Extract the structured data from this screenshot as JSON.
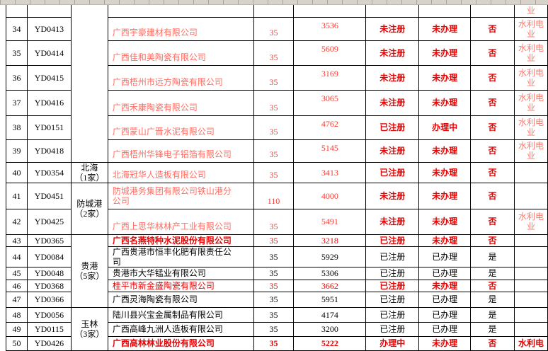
{
  "table": {
    "region_groups": [
      {
        "start": 0,
        "span": 7,
        "label": ""
      },
      {
        "start": 7,
        "span": 1,
        "label": "北海\n（1家）"
      },
      {
        "start": 8,
        "span": 2,
        "label": "防城港\n（2家）"
      },
      {
        "start": 10,
        "span": 5,
        "label": "贵港\n（5家）"
      },
      {
        "start": 15,
        "span": 3,
        "label": "玉林\n（3家）"
      }
    ],
    "rows": [
      {
        "num": "",
        "code": "",
        "company": "",
        "capacity": "",
        "value": "",
        "register": "",
        "handle": "",
        "compliant": "",
        "utility": "业",
        "tone": "red"
      },
      {
        "num": "34",
        "code": "YD0413",
        "company": "广西宇豪建材有限公司",
        "capacity": "35",
        "value": "3536",
        "register": "未注册",
        "handle": "未办理",
        "compliant": "否",
        "utility": "水利电\n业",
        "tone": "red"
      },
      {
        "num": "35",
        "code": "YD0414",
        "company": "广西佳和美陶瓷有限公司",
        "capacity": "35",
        "value": "5609",
        "register": "未注册",
        "handle": "未办理",
        "compliant": "否",
        "utility": "水利电\n业",
        "tone": "red"
      },
      {
        "num": "36",
        "code": "YD0415",
        "company": "广西梧州市远方陶瓷有限公司",
        "capacity": "35",
        "value": "3169",
        "register": "未注册",
        "handle": "未办理",
        "compliant": "否",
        "utility": "水利电\n业",
        "tone": "red"
      },
      {
        "num": "37",
        "code": "YD0416",
        "company": "广西禾康陶瓷有限公司",
        "capacity": "35",
        "value": "3065",
        "register": "未注册",
        "handle": "未办理",
        "compliant": "否",
        "utility": "水利电\n业",
        "tone": "red"
      },
      {
        "num": "38",
        "code": "YD0151",
        "company": "广西蒙山广晋水泥有限公司",
        "capacity": "35",
        "value": "4762",
        "register": "已注册",
        "handle": "办理中",
        "compliant": "否",
        "utility": "水利电\n业",
        "tone": "red"
      },
      {
        "num": "39",
        "code": "YD0418",
        "company": "广西梧州华锋电子铝箔有限公司",
        "capacity": "35",
        "value": "5145",
        "register": "未注册",
        "handle": "未办理",
        "compliant": "否",
        "utility": "水利电\n业",
        "tone": "red"
      },
      {
        "num": "40",
        "code": "YD0354",
        "company": "北海冠华人造板有限公司",
        "capacity": "35",
        "value": "3413",
        "register": "已注册",
        "handle": "未办理",
        "compliant": "否",
        "utility": "",
        "tone": "red"
      },
      {
        "num": "41",
        "code": "YD0451",
        "company": "防城港务集团有限公司铁山港分\n公司",
        "capacity": "110",
        "value": "4000",
        "register": "未注册",
        "handle": "未办理",
        "compliant": "否",
        "utility": "",
        "tone": "red"
      },
      {
        "num": "42",
        "code": "YD0425",
        "company": "广西上思华林林产工业有限公司",
        "capacity": "35",
        "value": "5491",
        "register": "未注册",
        "handle": "未办理",
        "compliant": "否",
        "utility": "水利电\n业",
        "tone": "red"
      },
      {
        "num": "43",
        "code": "YD0365",
        "company": "广西名燕特种水泥股份有限公司",
        "capacity": "35",
        "value": "3218",
        "register": "已注册",
        "handle": "未办理",
        "compliant": "否",
        "utility": "",
        "tone": "strong",
        "company_bold": true
      },
      {
        "num": "44",
        "code": "YD0084",
        "company": "广西贵港市恒丰化肥有限责任公\n司",
        "capacity": "35",
        "value": "5929",
        "register": "已注册",
        "handle": "已办理",
        "compliant": "是",
        "utility": "",
        "tone": "black"
      },
      {
        "num": "45",
        "code": "YD0048",
        "company": "贵港市大华锰业有限公司",
        "capacity": "35",
        "value": "5306",
        "register": "已注册",
        "handle": "已办理",
        "compliant": "是",
        "utility": "",
        "tone": "black"
      },
      {
        "num": "46",
        "code": "YD0368",
        "company": "桂平市新金盛陶瓷有限公司",
        "capacity": "35",
        "value": "3662",
        "register": "已注册",
        "handle": "未办理",
        "compliant": "否",
        "utility": "",
        "tone": "strong"
      },
      {
        "num": "47",
        "code": "YD0366",
        "company": "广西灵海陶瓷有限公司",
        "capacity": "35",
        "value": "5951",
        "register": "已注册",
        "handle": "已办理",
        "compliant": "是",
        "utility": "",
        "tone": "black"
      },
      {
        "num": "48",
        "code": "YD0056",
        "company": "陆川县兴宝金属制品有限公司",
        "capacity": "35",
        "value": "4174",
        "register": "已注册",
        "handle": "已办理",
        "compliant": "是",
        "utility": "",
        "tone": "black"
      },
      {
        "num": "49",
        "code": "YD0115",
        "company": "广西高峰九洲人造板有限公司",
        "capacity": "35",
        "value": "3200",
        "register": "已注册",
        "handle": "已办理",
        "compliant": "是",
        "utility": "",
        "tone": "black"
      },
      {
        "num": "50",
        "code": "YD0426",
        "company": "广西高林林业股份有限公司",
        "capacity": "35",
        "value": "5222",
        "register": "办理中",
        "handle": "未办理",
        "compliant": "否",
        "utility": "水利电",
        "tone": "strong",
        "bold": true
      }
    ]
  }
}
